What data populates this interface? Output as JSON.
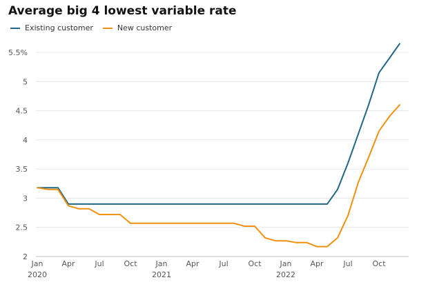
{
  "chart_data": {
    "type": "line",
    "title": "Average big 4 lowest variable rate",
    "xlabel": "",
    "ylabel": "",
    "ylim": [
      2,
      5.75
    ],
    "yticks": [
      2,
      2.5,
      3,
      3.5,
      4,
      4.5,
      5,
      5.5
    ],
    "ytick_labels": [
      "2",
      "2.5",
      "3",
      "3.5",
      "4",
      "4.5",
      "5",
      "5.5%"
    ],
    "xticks": [
      {
        "month": 0,
        "label": "Jan",
        "sublabel": "2020"
      },
      {
        "month": 3,
        "label": "Apr",
        "sublabel": ""
      },
      {
        "month": 6,
        "label": "Jul",
        "sublabel": ""
      },
      {
        "month": 9,
        "label": "Oct",
        "sublabel": ""
      },
      {
        "month": 12,
        "label": "Jan",
        "sublabel": "2021"
      },
      {
        "month": 15,
        "label": "Apr",
        "sublabel": ""
      },
      {
        "month": 18,
        "label": "Jul",
        "sublabel": ""
      },
      {
        "month": 21,
        "label": "Oct",
        "sublabel": ""
      },
      {
        "month": 24,
        "label": "Jan",
        "sublabel": "2022"
      },
      {
        "month": 27,
        "label": "Apr",
        "sublabel": ""
      },
      {
        "month": 30,
        "label": "Jul",
        "sublabel": ""
      },
      {
        "month": 33,
        "label": "Oct",
        "sublabel": ""
      }
    ],
    "grid": true,
    "legend_position": "top-left",
    "series": [
      {
        "name": "Existing customer",
        "color": "#1f6683",
        "points": [
          [
            0,
            3.18
          ],
          [
            1,
            3.18
          ],
          [
            2,
            3.18
          ],
          [
            3,
            2.9
          ],
          [
            4,
            2.9
          ],
          [
            5,
            2.9
          ],
          [
            6,
            2.9
          ],
          [
            9,
            2.9
          ],
          [
            12,
            2.9
          ],
          [
            15,
            2.9
          ],
          [
            18,
            2.9
          ],
          [
            21,
            2.9
          ],
          [
            24,
            2.9
          ],
          [
            27,
            2.9
          ],
          [
            28,
            2.9
          ],
          [
            29,
            3.15
          ],
          [
            30,
            3.6
          ],
          [
            31,
            4.1
          ],
          [
            32,
            4.6
          ],
          [
            33,
            5.15
          ],
          [
            34,
            5.4
          ],
          [
            35,
            5.65
          ]
        ]
      },
      {
        "name": "New customer",
        "color": "#f0900e",
        "points": [
          [
            0,
            3.18
          ],
          [
            1,
            3.15
          ],
          [
            2,
            3.15
          ],
          [
            3,
            2.87
          ],
          [
            4,
            2.82
          ],
          [
            5,
            2.82
          ],
          [
            6,
            2.72
          ],
          [
            7,
            2.72
          ],
          [
            8,
            2.72
          ],
          [
            9,
            2.57
          ],
          [
            10,
            2.57
          ],
          [
            11,
            2.57
          ],
          [
            12,
            2.57
          ],
          [
            13,
            2.57
          ],
          [
            14,
            2.57
          ],
          [
            15,
            2.57
          ],
          [
            16,
            2.57
          ],
          [
            17,
            2.57
          ],
          [
            18,
            2.57
          ],
          [
            19,
            2.57
          ],
          [
            20,
            2.52
          ],
          [
            21,
            2.52
          ],
          [
            22,
            2.32
          ],
          [
            23,
            2.27
          ],
          [
            24,
            2.27
          ],
          [
            25,
            2.24
          ],
          [
            26,
            2.24
          ],
          [
            27,
            2.17
          ],
          [
            28,
            2.17
          ],
          [
            29,
            2.32
          ],
          [
            30,
            2.7
          ],
          [
            31,
            3.27
          ],
          [
            32,
            3.7
          ],
          [
            33,
            4.15
          ],
          [
            34,
            4.4
          ],
          [
            35,
            4.6
          ]
        ]
      }
    ]
  }
}
